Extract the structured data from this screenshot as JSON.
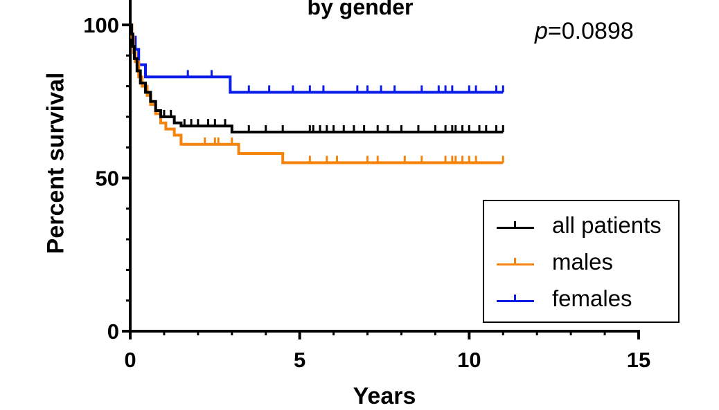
{
  "chart_data": {
    "type": "line",
    "subtype": "kaplan-meier step",
    "title": "by gender",
    "annotation": {
      "italic": "p",
      "rest": "=0.0898"
    },
    "xlabel": "Years",
    "ylabel": "Percent survival",
    "xlim": [
      0,
      15
    ],
    "ylim": [
      0,
      100
    ],
    "xticks": [
      0,
      5,
      10,
      15
    ],
    "yticks": [
      0,
      50,
      100
    ],
    "x_minor_step": 1,
    "y_minor_step": 10,
    "grid": false,
    "legend_position": "bottom-right",
    "series": [
      {
        "name": "all patients",
        "color": "#000000",
        "steps": [
          [
            0,
            100
          ],
          [
            0.04,
            97
          ],
          [
            0.08,
            93
          ],
          [
            0.12,
            89
          ],
          [
            0.2,
            85
          ],
          [
            0.3,
            81
          ],
          [
            0.45,
            78
          ],
          [
            0.6,
            75
          ],
          [
            0.75,
            72
          ],
          [
            0.9,
            70
          ],
          [
            1.3,
            68
          ],
          [
            1.5,
            67
          ],
          [
            3.0,
            65
          ],
          [
            11.0,
            65
          ]
        ],
        "censored": [
          1.0,
          1.2,
          1.6,
          1.8,
          2.0,
          2.3,
          2.5,
          2.8,
          3.5,
          4.0,
          4.5,
          5.3,
          5.4,
          5.6,
          5.8,
          6.0,
          6.3,
          6.6,
          6.9,
          7.3,
          7.6,
          8.0,
          8.5,
          9.0,
          9.3,
          9.5,
          9.6,
          9.8,
          10.0,
          10.3,
          10.5,
          10.8,
          11.0
        ]
      },
      {
        "name": "males",
        "color": "#f5840c",
        "steps": [
          [
            0,
            100
          ],
          [
            0.05,
            96
          ],
          [
            0.1,
            91
          ],
          [
            0.15,
            88
          ],
          [
            0.25,
            83
          ],
          [
            0.35,
            80
          ],
          [
            0.5,
            77
          ],
          [
            0.6,
            74
          ],
          [
            0.75,
            71
          ],
          [
            0.9,
            68
          ],
          [
            1.05,
            66
          ],
          [
            1.3,
            64
          ],
          [
            1.5,
            61
          ],
          [
            3.2,
            58
          ],
          [
            4.5,
            55
          ],
          [
            11.0,
            55
          ]
        ],
        "censored": [
          2.2,
          2.5,
          2.6,
          3.0,
          5.3,
          5.8,
          6.1,
          7.0,
          7.3,
          8.1,
          8.6,
          9.3,
          9.5,
          9.6,
          9.8,
          10.0,
          10.2,
          11.0
        ]
      },
      {
        "name": "females",
        "color": "#0a1de8",
        "steps": [
          [
            0,
            100
          ],
          [
            0.05,
            96
          ],
          [
            0.15,
            92
          ],
          [
            0.25,
            87
          ],
          [
            0.45,
            83
          ],
          [
            2.95,
            78
          ],
          [
            11.0,
            78
          ]
        ],
        "censored": [
          1.7,
          2.4,
          3.5,
          4.1,
          4.8,
          5.3,
          5.7,
          6.7,
          7.0,
          7.4,
          7.8,
          8.6,
          9.1,
          9.3,
          9.5,
          10.0,
          10.2,
          10.8,
          11.0
        ]
      }
    ]
  }
}
